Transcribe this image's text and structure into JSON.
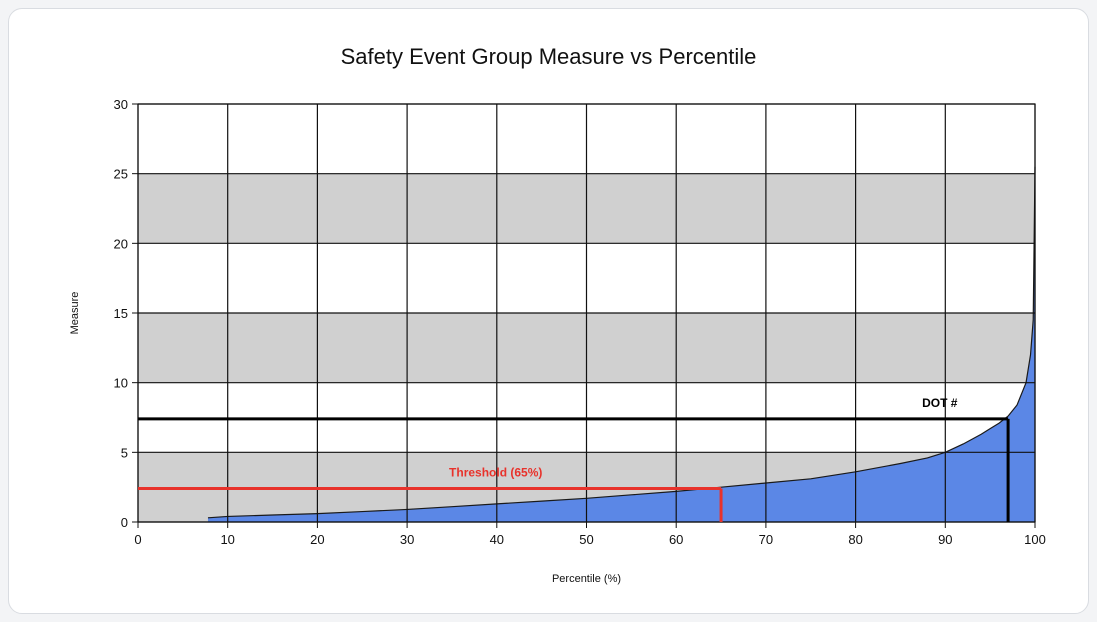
{
  "chart_data": {
    "type": "area",
    "title": "Safety Event Group Measure vs Percentile",
    "xlabel": "Percentile (%)",
    "ylabel": "Measure",
    "xlim": [
      0,
      100
    ],
    "ylim": [
      0,
      30
    ],
    "x_ticks": [
      0,
      10,
      20,
      30,
      40,
      50,
      60,
      70,
      80,
      90,
      100
    ],
    "y_ticks": [
      0,
      5,
      10,
      15,
      20,
      25,
      30
    ],
    "grid": true,
    "alternating_bands": [
      {
        "from": 0,
        "to": 5
      },
      {
        "from": 10,
        "to": 15
      },
      {
        "from": 20,
        "to": 25
      }
    ],
    "series": [
      {
        "color": "#5b87e6",
        "x": [
          7.8,
          10,
          15,
          20,
          25,
          30,
          35,
          40,
          45,
          50,
          55,
          60,
          65,
          70,
          75,
          80,
          85,
          88,
          90,
          92,
          94,
          95,
          96,
          97,
          98,
          99,
          99.5,
          99.8,
          100
        ],
        "y": [
          0.3,
          0.4,
          0.5,
          0.6,
          0.75,
          0.9,
          1.1,
          1.3,
          1.5,
          1.7,
          1.95,
          2.2,
          2.5,
          2.8,
          3.1,
          3.6,
          4.2,
          4.6,
          5.0,
          5.6,
          6.3,
          6.7,
          7.1,
          7.6,
          8.4,
          10.0,
          12.0,
          14.5,
          25.5
        ]
      }
    ],
    "annotations": [
      {
        "label": "Threshold (65%)",
        "x": 65,
        "y": 2.4,
        "color": "#e8322b"
      },
      {
        "label": "DOT #",
        "x": 97,
        "y": 7.4,
        "color": "#000000"
      }
    ]
  },
  "colors": {
    "band": "#d0d0d0",
    "grid": "#111111",
    "area": "#5b87e6",
    "threshold": "#e8322b",
    "dot": "#000000"
  }
}
